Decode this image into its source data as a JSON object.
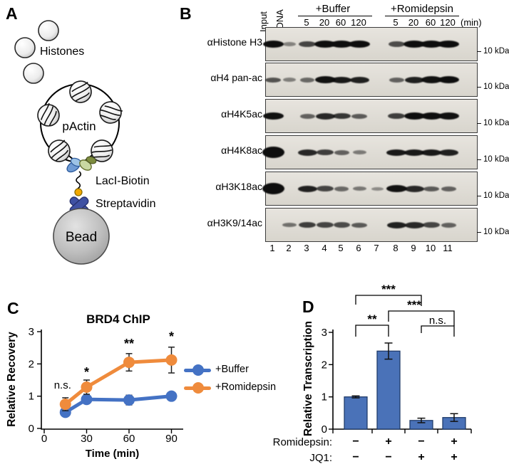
{
  "figure": {
    "panel_a": {
      "label": "A",
      "histones_label": "Histones",
      "plasmid_label": "pActin",
      "laci_label": "LacI-Biotin",
      "strep_label": "Streptavidin",
      "bead_label": "Bead",
      "colors": {
        "laci_blue": "#6f9bd4",
        "laci_green": "#c9d8a2",
        "laci_olive": "#7d8c3f",
        "biotin_yellow": "#f2a900",
        "strep_blue": "#3f51a3"
      }
    },
    "panel_b": {
      "label": "B",
      "rotated_lane_labels": [
        "Input",
        "-DNA"
      ],
      "groups": [
        {
          "label": "+Buffer",
          "times": [
            "5",
            "20",
            "60",
            "120"
          ]
        },
        {
          "label": "+Romidepsin",
          "times": [
            "5",
            "20",
            "60",
            "120"
          ]
        }
      ],
      "min_suffix": "(min)",
      "marker_label": "10 kDa",
      "lane_numbers": [
        "1",
        "2",
        "3",
        "4",
        "5",
        "6",
        "7",
        "8",
        "9",
        "10",
        "11"
      ],
      "rows": [
        {
          "antibody": "αHistone H3",
          "bands": [
            0.95,
            0.12,
            0.55,
            1,
            1,
            1,
            0,
            0.5,
            1,
            1,
            1
          ]
        },
        {
          "antibody": "αH4 pan-ac",
          "bands": [
            0.45,
            0.15,
            0.3,
            0.9,
            0.85,
            0.8,
            0,
            0.35,
            0.8,
            0.9,
            0.95
          ]
        },
        {
          "antibody": "αH4K5ac",
          "bands": [
            0.9,
            0,
            0.35,
            0.75,
            0.65,
            0.4,
            0,
            0.6,
            0.95,
            0.95,
            0.9
          ]
        },
        {
          "antibody": "αH4K8ac",
          "bands": [
            1,
            0,
            0.75,
            0.6,
            0.35,
            0.18,
            0,
            0.85,
            0.85,
            0.85,
            0.8
          ],
          "blob_first": true
        },
        {
          "antibody": "αH3K18ac",
          "bands": [
            1,
            0,
            0.8,
            0.55,
            0.3,
            0.2,
            0.06,
            0.9,
            0.75,
            0.4,
            0.35
          ],
          "blob_first": true
        },
        {
          "antibody": "αH3K9/14ac",
          "bands": [
            0,
            0.25,
            0.6,
            0.55,
            0.5,
            0.4,
            0,
            0.8,
            0.75,
            0.55,
            0.35
          ]
        }
      ]
    },
    "panel_c": {
      "label": "C"
    },
    "panel_d": {
      "label": "D"
    }
  },
  "chart_data": [
    {
      "type": "line",
      "title": "BRD4 ChIP",
      "xlabel": "Time (min)",
      "ylabel": "Relative Recovery",
      "x": [
        15,
        30,
        60,
        90
      ],
      "x_ticks": [
        0,
        30,
        60,
        90
      ],
      "ylim": [
        0,
        3
      ],
      "y_ticks": [
        0,
        1,
        2,
        3
      ],
      "legend_position": "right",
      "series": [
        {
          "name": "+Buffer",
          "color": "#4472C4",
          "values": [
            0.5,
            0.9,
            0.88,
            1.0
          ],
          "errors": [
            0.08,
            0.07,
            0.15,
            0.08
          ]
        },
        {
          "name": "+Romidepsin",
          "color": "#EF8B3C",
          "values": [
            0.75,
            1.28,
            2.05,
            2.12
          ],
          "errors": [
            0.2,
            0.22,
            0.27,
            0.4
          ]
        }
      ],
      "annotations": [
        {
          "text": "n.s.",
          "x": 13,
          "y": 1.35,
          "style": "ns"
        },
        {
          "text": "*",
          "x": 30,
          "y": 1.72,
          "style": "star"
        },
        {
          "text": "**",
          "x": 60,
          "y": 2.6,
          "style": "star"
        },
        {
          "text": "*",
          "x": 90,
          "y": 2.82,
          "style": "star"
        }
      ]
    },
    {
      "type": "bar",
      "ylabel": "Relative Transcription",
      "values": [
        1.0,
        2.42,
        0.27,
        0.36
      ],
      "errors": [
        0.03,
        0.25,
        0.07,
        0.12
      ],
      "bar_color": "#4A72B8",
      "bar_border": "#1f3a68",
      "ylim": [
        0,
        3
      ],
      "y_ticks": [
        0,
        1,
        2,
        3
      ],
      "condition_rows": [
        {
          "label": "Romidepsin:",
          "values": [
            "−",
            "+",
            "−",
            "+"
          ]
        },
        {
          "label": "JQ1:",
          "values": [
            "−",
            "−",
            "+",
            "+"
          ]
        }
      ],
      "comparisons": [
        {
          "label": "***",
          "from": 0,
          "to": 2,
          "style": "star"
        },
        {
          "label": "***",
          "from": 1,
          "to": 3,
          "style": "star"
        },
        {
          "label": "**",
          "from": 0,
          "to": 1,
          "style": "star"
        },
        {
          "label": "n.s.",
          "from": 2,
          "to": 3,
          "style": "ns"
        }
      ]
    }
  ]
}
